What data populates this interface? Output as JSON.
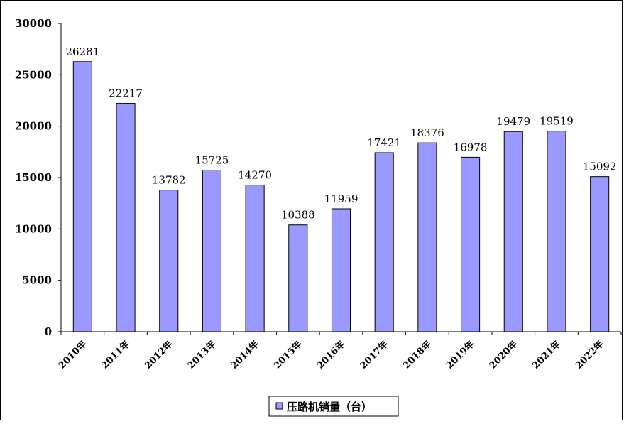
{
  "chart_data": {
    "type": "bar",
    "categories": [
      "2010年",
      "2011年",
      "2012年",
      "2013年",
      "2014年",
      "2015年",
      "2016年",
      "2017年",
      "2018年",
      "2019年",
      "2020年",
      "2021年",
      "2022年"
    ],
    "series": [
      {
        "name": "压路机销量（台）",
        "values": [
          26281,
          22217,
          13782,
          15725,
          14270,
          10388,
          11959,
          17421,
          18376,
          16978,
          19479,
          19519,
          15092
        ],
        "color": "#9999ff"
      }
    ],
    "data_labels": [
      "26281",
      "22217",
      "13782",
      "15725",
      "14270",
      "10388",
      "11959",
      "17421",
      "18376",
      "16978",
      "19479",
      "19519",
      "15092"
    ],
    "title": "",
    "xlabel": "",
    "ylabel": "",
    "ylim": [
      0,
      30000
    ],
    "yticks": [
      0,
      5000,
      10000,
      15000,
      20000,
      25000,
      30000
    ],
    "ytick_labels": [
      "0",
      "5000",
      "10000",
      "15000",
      "20000",
      "25000",
      "30000"
    ],
    "grid": false,
    "legend": {
      "placement": "bottom-center",
      "entries": [
        "压路机销量（台）"
      ]
    }
  }
}
